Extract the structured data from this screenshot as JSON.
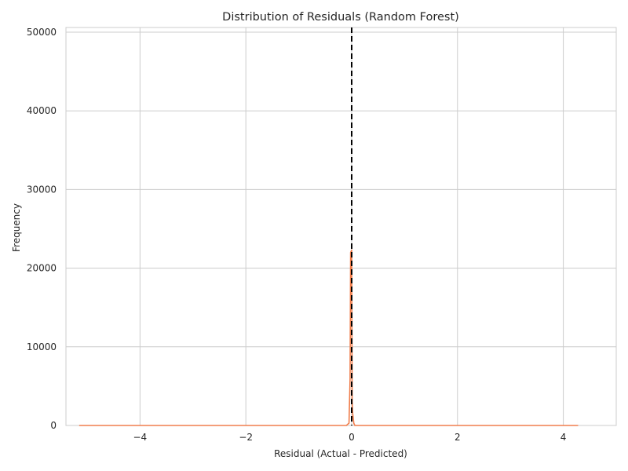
{
  "chart_data": {
    "type": "line",
    "title": "Distribution of Residuals (Random Forest)",
    "xlabel": "Residual (Actual - Predicted)",
    "ylabel": "Frequency",
    "xlim": [
      -5.4,
      5.0
    ],
    "ylim": [
      0,
      50600
    ],
    "xticks": [
      -4,
      -2,
      0,
      2,
      4
    ],
    "xtick_labels": [
      "−4",
      "−2",
      "0",
      "2",
      "4"
    ],
    "yticks": [
      0,
      10000,
      20000,
      30000,
      40000,
      50000
    ],
    "ytick_labels": [
      "0",
      "10000",
      "20000",
      "30000",
      "40000",
      "50000"
    ],
    "grid": true,
    "series": [
      {
        "color": "#f07f4e",
        "x": [
          -5.15,
          -1.0,
          -0.1,
          -0.05,
          -0.03,
          -0.02,
          0.0,
          0.01,
          0.02,
          0.04,
          0.06,
          0.1,
          1.0,
          4.28
        ],
        "y": [
          0,
          0,
          0,
          300,
          6000,
          22000,
          22300,
          3000,
          1500,
          300,
          0,
          0,
          0,
          0
        ]
      }
    ],
    "reference_line": {
      "x": 0,
      "color": "#000000",
      "style": "dashed"
    }
  }
}
